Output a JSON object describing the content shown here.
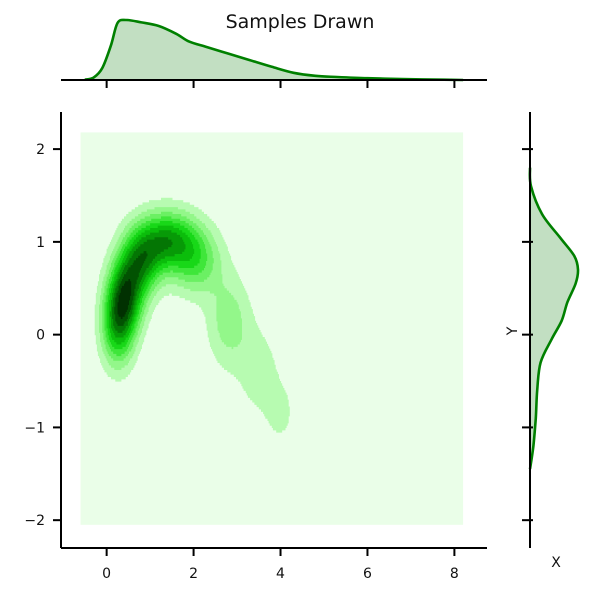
{
  "chart_data": {
    "type": "kde-joint",
    "title": "Samples Drawn",
    "xlabel": "X",
    "ylabel": "Y",
    "xlim": [
      -1.05,
      8.75
    ],
    "ylim": [
      -2.3,
      2.4
    ],
    "x_ticks": [
      0,
      2,
      4,
      6,
      8
    ],
    "x_tick_labels": [
      "0",
      "2",
      "4",
      "6",
      "8"
    ],
    "y_ticks": [
      -2,
      -1,
      0,
      1,
      2
    ],
    "y_tick_labels": [
      "−2",
      "−1",
      "0",
      "1",
      "2"
    ],
    "grid": false,
    "colors": {
      "background_fill": "#eafee8",
      "line": "#008000",
      "marginal_fill": "#c2dfc2",
      "levels": [
        "#b7fbb1",
        "#93f78a",
        "#6bf063",
        "#3fe63a",
        "#18d818",
        "#0bbd0b",
        "#079a07",
        "#047604",
        "#025202",
        "#013101"
      ]
    },
    "density_region": {
      "x": [
        -0.6,
        8.2
      ],
      "y": [
        -2.05,
        2.18
      ]
    },
    "contour_peaks": [
      {
        "x": 0.45,
        "y": 0.45,
        "sx": 0.28,
        "sy": 0.28,
        "w": 1.0
      },
      {
        "x": 0.25,
        "y": 0.1,
        "sx": 0.26,
        "sy": 0.3,
        "w": 0.9
      },
      {
        "x": 0.8,
        "y": 0.8,
        "sx": 0.32,
        "sy": 0.25,
        "w": 0.85
      },
      {
        "x": 1.4,
        "y": 1.02,
        "sx": 0.45,
        "sy": 0.22,
        "w": 0.95
      },
      {
        "x": 2.05,
        "y": 0.8,
        "sx": 0.4,
        "sy": 0.25,
        "w": 0.55
      },
      {
        "x": 2.8,
        "y": 0.15,
        "sx": 0.35,
        "sy": 0.35,
        "w": 0.35
      },
      {
        "x": 3.5,
        "y": -0.4,
        "sx": 0.35,
        "sy": 0.35,
        "w": 0.2
      },
      {
        "x": 4.0,
        "y": -0.85,
        "sx": 0.25,
        "sy": 0.25,
        "w": 0.16
      }
    ],
    "x_marginal": {
      "x": [
        -0.5,
        -0.3,
        -0.1,
        0.1,
        0.25,
        0.45,
        0.8,
        1.2,
        1.6,
        1.9,
        2.3,
        2.8,
        3.3,
        3.8,
        4.3,
        4.8,
        5.3,
        6.0,
        6.8,
        7.5,
        8.2
      ],
      "density": [
        0.005,
        0.04,
        0.2,
        0.58,
        0.95,
        1.0,
        0.96,
        0.9,
        0.77,
        0.64,
        0.55,
        0.44,
        0.33,
        0.22,
        0.12,
        0.07,
        0.05,
        0.03,
        0.015,
        0.008,
        0.0
      ]
    },
    "y_marginal": {
      "y": [
        -1.45,
        -1.2,
        -0.9,
        -0.6,
        -0.3,
        -0.05,
        0.15,
        0.35,
        0.55,
        0.7,
        0.85,
        1.05,
        1.3,
        1.6,
        1.8
      ],
      "density": [
        0.0,
        0.07,
        0.12,
        0.15,
        0.22,
        0.45,
        0.66,
        0.78,
        0.95,
        1.0,
        0.92,
        0.62,
        0.25,
        0.02,
        0.0
      ]
    }
  }
}
